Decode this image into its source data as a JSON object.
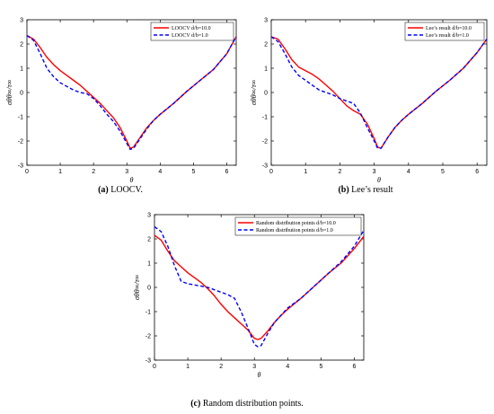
{
  "captions": [
    {
      "tag": "(a)",
      "text": "LOOCV."
    },
    {
      "tag": "(b)",
      "text": "Lee’s result"
    },
    {
      "tag": "(c)",
      "text": "Random distribution points."
    }
  ],
  "chart_data": [
    {
      "type": "line",
      "xlabel": "θ",
      "ylabel": "σθθ∞/τ∞",
      "xlim": [
        0,
        6.2832
      ],
      "ylim": [
        -3,
        3
      ],
      "xticks": [
        0,
        1,
        2,
        3,
        4,
        5,
        6
      ],
      "yticks": [
        -3,
        -2,
        -1,
        0,
        1,
        2,
        3
      ],
      "grid": false,
      "legend_position": "top-right",
      "series": [
        {
          "name": "LOOCV d/b=10.0",
          "color": "#ff0000",
          "dash": "solid",
          "x": [
            0,
            0.2,
            0.4,
            0.6,
            0.8,
            1.0,
            1.2,
            1.4,
            1.6,
            1.8,
            2.0,
            2.2,
            2.4,
            2.6,
            2.8,
            3.0,
            3.1,
            3.2,
            3.4,
            3.6,
            3.8,
            4.0,
            4.4,
            4.8,
            5.2,
            5.6,
            6.0,
            6.28
          ],
          "y": [
            2.35,
            2.2,
            1.85,
            1.45,
            1.15,
            0.9,
            0.7,
            0.5,
            0.3,
            0.05,
            -0.2,
            -0.45,
            -0.75,
            -1.05,
            -1.45,
            -2.0,
            -2.3,
            -2.25,
            -1.85,
            -1.45,
            -1.15,
            -0.9,
            -0.45,
            0.05,
            0.5,
            0.95,
            1.6,
            2.3
          ]
        },
        {
          "name": "LOOCV d/b=1.0",
          "color": "#0000ff",
          "dash": "dashed",
          "x": [
            0,
            0.2,
            0.4,
            0.6,
            0.8,
            1.0,
            1.2,
            1.4,
            1.6,
            1.8,
            2.0,
            2.2,
            2.4,
            2.6,
            2.8,
            3.0,
            3.1,
            3.2,
            3.4,
            3.6,
            3.8,
            4.0,
            4.4,
            4.8,
            5.2,
            5.6,
            6.0,
            6.28
          ],
          "y": [
            2.35,
            2.15,
            1.6,
            1.0,
            0.65,
            0.4,
            0.25,
            0.1,
            0.0,
            -0.05,
            -0.25,
            -0.55,
            -0.9,
            -1.2,
            -1.6,
            -2.1,
            -2.35,
            -2.3,
            -1.9,
            -1.5,
            -1.15,
            -0.9,
            -0.45,
            0.05,
            0.5,
            0.95,
            1.6,
            2.3
          ]
        }
      ]
    },
    {
      "type": "line",
      "xlabel": "θ",
      "ylabel": "σθθ∞/τ∞",
      "xlim": [
        0,
        6.2832
      ],
      "ylim": [
        -3,
        3
      ],
      "xticks": [
        0,
        1,
        2,
        3,
        4,
        5,
        6
      ],
      "yticks": [
        -3,
        -2,
        -1,
        0,
        1,
        2,
        3
      ],
      "grid": false,
      "legend_position": "top-right",
      "series": [
        {
          "name": "Lee’s result d/b=10.0",
          "color": "#ff0000",
          "dash": "solid",
          "x": [
            0,
            0.2,
            0.4,
            0.6,
            0.8,
            1.0,
            1.2,
            1.4,
            1.6,
            1.8,
            2.0,
            2.2,
            2.4,
            2.6,
            2.8,
            3.0,
            3.1,
            3.2,
            3.4,
            3.6,
            3.8,
            4.0,
            4.4,
            4.8,
            5.2,
            5.6,
            6.0,
            6.28
          ],
          "y": [
            2.3,
            2.2,
            1.8,
            1.35,
            1.05,
            0.9,
            0.75,
            0.55,
            0.3,
            0.05,
            -0.25,
            -0.55,
            -0.75,
            -0.9,
            -1.3,
            -1.9,
            -2.25,
            -2.3,
            -1.85,
            -1.45,
            -1.15,
            -0.9,
            -0.45,
            0.05,
            0.5,
            1.0,
            1.65,
            2.2
          ]
        },
        {
          "name": "Lee’s result d/b=1.0",
          "color": "#0000ff",
          "dash": "dashed",
          "x": [
            0,
            0.2,
            0.4,
            0.6,
            0.8,
            1.0,
            1.2,
            1.4,
            1.6,
            1.8,
            2.0,
            2.2,
            2.4,
            2.6,
            2.8,
            3.0,
            3.1,
            3.2,
            3.4,
            3.6,
            3.8,
            4.0,
            4.4,
            4.8,
            5.2,
            5.6,
            6.0,
            6.28
          ],
          "y": [
            2.3,
            2.1,
            1.6,
            1.05,
            0.7,
            0.5,
            0.3,
            0.1,
            0.0,
            -0.1,
            -0.25,
            -0.35,
            -0.45,
            -0.85,
            -1.45,
            -2.0,
            -2.3,
            -2.3,
            -1.85,
            -1.45,
            -1.15,
            -0.9,
            -0.45,
            0.05,
            0.5,
            1.0,
            1.65,
            2.2
          ]
        }
      ]
    },
    {
      "type": "line",
      "xlabel": "θ",
      "ylabel": "σθθ∞/τ∞",
      "xlim": [
        0,
        6.2832
      ],
      "ylim": [
        -3,
        3
      ],
      "xticks": [
        0,
        1,
        2,
        3,
        4,
        5,
        6
      ],
      "yticks": [
        -3,
        -2,
        -1,
        0,
        1,
        2,
        3
      ],
      "grid": false,
      "legend_position": "top-right",
      "series": [
        {
          "name": "Random distribution points d/b=10.0",
          "color": "#ff0000",
          "dash": "solid",
          "x": [
            0,
            0.2,
            0.4,
            0.6,
            0.8,
            1.0,
            1.2,
            1.4,
            1.6,
            1.8,
            2.0,
            2.2,
            2.4,
            2.6,
            2.8,
            3.0,
            3.1,
            3.2,
            3.4,
            3.6,
            3.8,
            4.0,
            4.4,
            4.8,
            5.2,
            5.6,
            6.0,
            6.28
          ],
          "y": [
            2.15,
            1.95,
            1.5,
            1.1,
            0.85,
            0.6,
            0.4,
            0.2,
            -0.05,
            -0.35,
            -0.7,
            -1.0,
            -1.25,
            -1.5,
            -1.75,
            -2.1,
            -2.15,
            -2.1,
            -1.8,
            -1.45,
            -1.15,
            -0.9,
            -0.45,
            0.05,
            0.55,
            1.0,
            1.6,
            2.1
          ]
        },
        {
          "name": "Random distribution points d/b=1.0",
          "color": "#0000ff",
          "dash": "dashed",
          "x": [
            0,
            0.2,
            0.4,
            0.6,
            0.8,
            1.0,
            1.2,
            1.4,
            1.6,
            1.8,
            2.0,
            2.2,
            2.4,
            2.6,
            2.8,
            3.0,
            3.1,
            3.2,
            3.4,
            3.6,
            3.8,
            4.0,
            4.4,
            4.8,
            5.2,
            5.6,
            6.0,
            6.28
          ],
          "y": [
            2.5,
            2.3,
            1.7,
            0.9,
            0.25,
            0.15,
            0.1,
            0.05,
            0.0,
            -0.1,
            -0.2,
            -0.3,
            -0.45,
            -1.0,
            -1.65,
            -2.35,
            -2.45,
            -2.4,
            -1.9,
            -1.45,
            -1.15,
            -0.85,
            -0.45,
            0.05,
            0.55,
            1.05,
            1.7,
            2.35
          ]
        }
      ]
    }
  ]
}
